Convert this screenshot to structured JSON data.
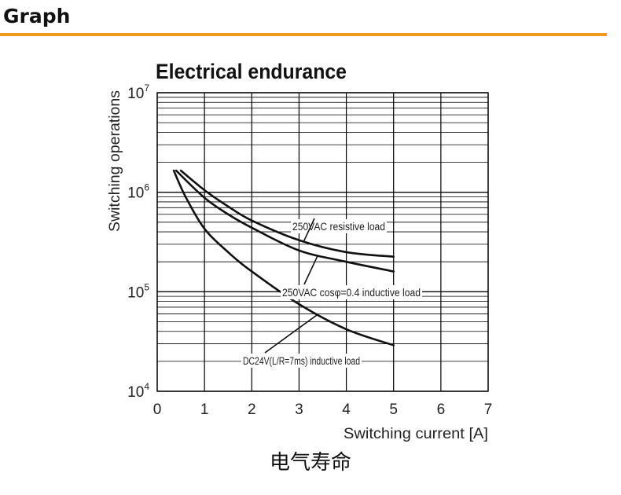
{
  "header": {
    "title": "Graph",
    "rule_color": "#f39a1e"
  },
  "footer": {
    "caption": "电气寿命"
  },
  "chart_data": {
    "type": "line",
    "title": "Electrical endurance",
    "xlabel": "Switching current [A]",
    "ylabel": "Switching operations",
    "xlim": [
      0,
      7
    ],
    "ylim": [
      10000,
      10000000
    ],
    "yscale": "log",
    "grid": true,
    "xticks": [
      "0",
      "1",
      "2",
      "3",
      "4",
      "5",
      "6",
      "7"
    ],
    "yticks": [
      {
        "base": "10",
        "exp": "4",
        "value": 10000
      },
      {
        "base": "10",
        "exp": "5",
        "value": 100000
      },
      {
        "base": "10",
        "exp": "6",
        "value": 1000000
      },
      {
        "base": "10",
        "exp": "7",
        "value": 10000000
      }
    ],
    "series": [
      {
        "name": "250VAC resistive load",
        "x": [
          0.5,
          1,
          1.5,
          2,
          3,
          4,
          5
        ],
        "y": [
          1650000,
          1050000,
          720000,
          520000,
          330000,
          250000,
          225000
        ]
      },
      {
        "name": "250VAC cosφ=0.4 inductive load",
        "x": [
          0.4,
          1,
          1.5,
          2,
          3,
          4,
          5
        ],
        "y": [
          1650000,
          880000,
          600000,
          440000,
          260000,
          200000,
          160000
        ]
      },
      {
        "name": "DC24V(L/R=7ms) inductive load",
        "x": [
          0.35,
          0.6,
          1,
          1.5,
          2,
          3,
          4,
          5
        ],
        "y": [
          1650000,
          900000,
          430000,
          250000,
          160000,
          75000,
          42000,
          29000
        ]
      }
    ],
    "annotations": [
      {
        "text": "250VAC resistive load",
        "series": 0,
        "at_x": 3.1
      },
      {
        "text": "250VAC cosφ=0.4 inductive load",
        "series": 1,
        "at_x": 3.4
      },
      {
        "text": "DC24V(L/R=7ms) inductive load",
        "series": 2,
        "at_x": 3.4
      }
    ]
  }
}
